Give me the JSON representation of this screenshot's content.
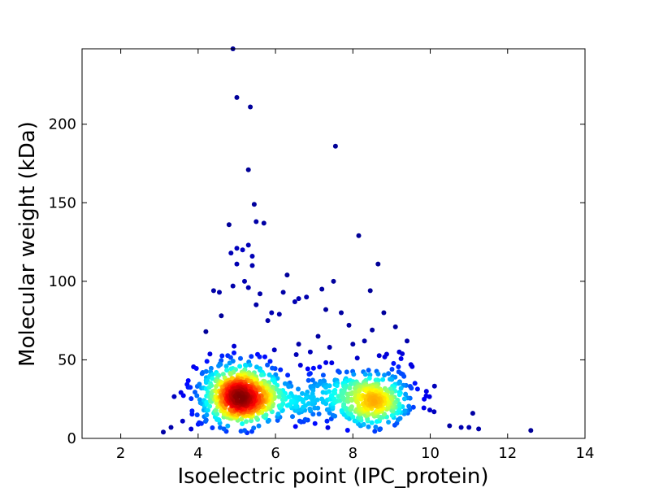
{
  "chart_data": {
    "type": "scatter",
    "xlabel": "Isoelectric point (IPC_protein)",
    "ylabel": "Molecular weight (kDa)",
    "xlim": [
      1,
      14
    ],
    "ylim": [
      0,
      248
    ],
    "xticks": [
      2,
      4,
      6,
      8,
      10,
      12,
      14
    ],
    "yticks": [
      0,
      50,
      100,
      150,
      200
    ],
    "color_scale": "density (jet colormap, blue = sparse, red = dense)",
    "clusters": [
      {
        "center_x": 5.1,
        "center_y": 25,
        "spread_x": 0.55,
        "spread_y": 11,
        "count": 650
      },
      {
        "center_x": 8.4,
        "center_y": 23,
        "spread_x": 0.6,
        "spread_y": 10,
        "count": 420
      },
      {
        "center_x": 6.7,
        "center_y": 25,
        "spread_x": 0.5,
        "spread_y": 12,
        "count": 120
      }
    ],
    "outliers": [
      [
        4.9,
        248
      ],
      [
        5.0,
        217
      ],
      [
        5.35,
        211
      ],
      [
        5.3,
        171
      ],
      [
        7.55,
        186
      ],
      [
        5.45,
        149
      ],
      [
        5.5,
        138
      ],
      [
        5.7,
        137
      ],
      [
        4.8,
        136
      ],
      [
        8.15,
        129
      ],
      [
        5.0,
        121
      ],
      [
        5.15,
        120
      ],
      [
        5.3,
        123
      ],
      [
        4.85,
        118
      ],
      [
        5.4,
        116
      ],
      [
        8.65,
        111
      ],
      [
        5.0,
        111
      ],
      [
        5.4,
        110
      ],
      [
        6.3,
        104
      ],
      [
        5.2,
        100
      ],
      [
        7.5,
        100
      ],
      [
        8.45,
        94
      ],
      [
        4.4,
        94
      ],
      [
        4.55,
        93
      ],
      [
        6.2,
        93
      ],
      [
        7.2,
        95
      ],
      [
        5.6,
        92
      ],
      [
        6.5,
        87
      ],
      [
        6.6,
        89
      ],
      [
        6.8,
        90
      ],
      [
        7.3,
        82
      ],
      [
        7.7,
        80
      ],
      [
        8.8,
        80
      ],
      [
        4.2,
        68
      ],
      [
        9.1,
        71
      ],
      [
        9.4,
        62
      ],
      [
        9.9,
        30
      ],
      [
        10.1,
        17
      ],
      [
        10.5,
        8
      ],
      [
        10.8,
        7
      ],
      [
        11.0,
        7
      ],
      [
        11.1,
        16
      ],
      [
        11.25,
        6
      ],
      [
        12.6,
        5
      ],
      [
        3.1,
        4
      ],
      [
        3.3,
        7
      ],
      [
        3.6,
        11
      ],
      [
        9.5,
        47
      ],
      [
        9.2,
        55
      ],
      [
        8.0,
        60
      ],
      [
        8.3,
        62
      ],
      [
        6.6,
        60
      ],
      [
        6.9,
        55
      ],
      [
        7.4,
        58
      ],
      [
        7.1,
        65
      ],
      [
        4.6,
        78
      ],
      [
        5.9,
        80
      ],
      [
        5.8,
        75
      ],
      [
        6.1,
        79
      ],
      [
        4.9,
        97
      ],
      [
        5.3,
        96
      ],
      [
        5.5,
        85
      ],
      [
        7.9,
        72
      ],
      [
        8.5,
        69
      ]
    ]
  }
}
